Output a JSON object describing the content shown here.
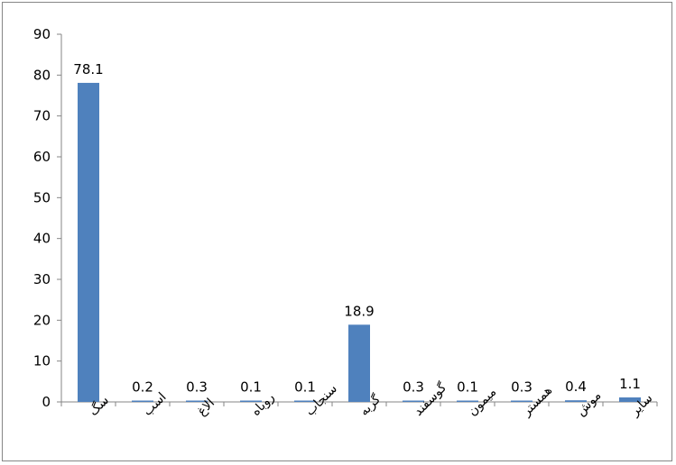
{
  "chart_data": {
    "type": "bar",
    "categories": [
      "سگ",
      "اسب",
      "الاغ",
      "روباه",
      "سنجاب",
      "گربه",
      "گوسفند",
      "میمون",
      "همستر",
      "موش",
      "سایر"
    ],
    "values": [
      78.1,
      0.2,
      0.3,
      0.1,
      0.1,
      18.9,
      0.3,
      0.1,
      0.3,
      0.4,
      1.1
    ],
    "data_labels": [
      "78.1",
      "0.2",
      "0.3",
      "0.1",
      "0.1",
      "18.9",
      "0.3",
      "0.1",
      "0.3",
      "0.4",
      "1.1"
    ],
    "yticks": [
      "0",
      "10",
      "20",
      "30",
      "40",
      "50",
      "60",
      "70",
      "80",
      "90"
    ],
    "ylim": [
      0,
      90
    ],
    "grid": false,
    "legend": "none",
    "bar_color": "#4f81bd",
    "title": "",
    "xlabel": "",
    "ylabel": ""
  }
}
